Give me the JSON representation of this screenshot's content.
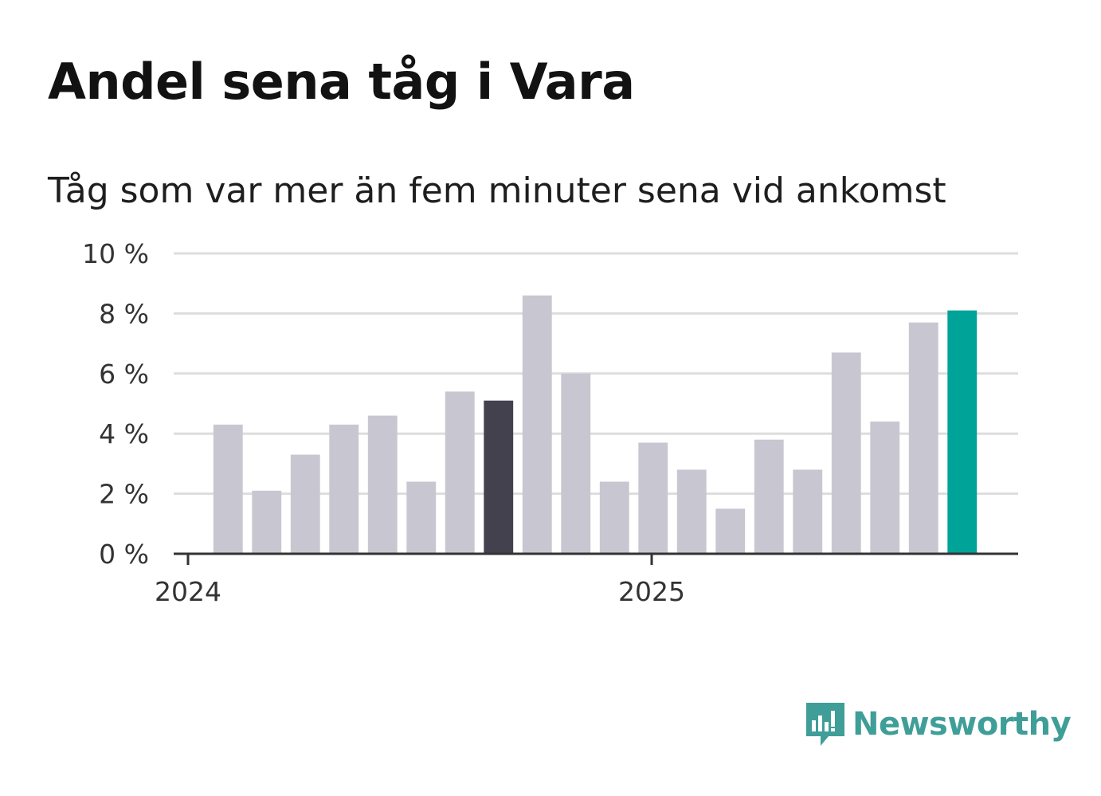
{
  "colors": {
    "bar_default": "#c8c7d1",
    "bar_highlight_prev": "#43414e",
    "bar_highlight_current": "#00a398",
    "grid": "#dddddd",
    "axis": "#333333",
    "brand": "#3f9e98"
  },
  "brand": {
    "name": "Newsworthy",
    "icon": "newsworthy-logo-icon"
  },
  "chart_data": {
    "type": "bar",
    "title": "Andel sena tåg i Vara",
    "subtitle": "Tåg som var mer än fem minuter sena vid ankomst",
    "xlabel": "",
    "ylabel": "",
    "categories": [
      "2024-01",
      "2024-02",
      "2024-03",
      "2024-04",
      "2024-05",
      "2024-06",
      "2024-07",
      "2024-08",
      "2024-09",
      "2024-10",
      "2024-11",
      "2024-12",
      "2025-01",
      "2025-02",
      "2025-03",
      "2025-04",
      "2025-05",
      "2025-06",
      "2025-07",
      "2025-08"
    ],
    "values": [
      4.3,
      2.1,
      3.3,
      4.3,
      4.6,
      2.4,
      5.4,
      5.1,
      8.6,
      6.0,
      2.4,
      3.7,
      2.8,
      1.5,
      3.8,
      2.8,
      6.7,
      4.4,
      7.7,
      8.1
    ],
    "highlight": {
      "2024-08": "bar_highlight_prev",
      "2025-08": "bar_highlight_current"
    },
    "ylim": [
      0,
      10
    ],
    "yticks": [
      0,
      2,
      4,
      6,
      8,
      10
    ],
    "ytick_labels": [
      "0 %",
      "2 %",
      "4 %",
      "6 %",
      "8 %",
      "10 %"
    ],
    "xticks": [
      {
        "label": "2024",
        "at": "2024-01",
        "offset": -0.5
      },
      {
        "label": "2025",
        "at": "2025-01",
        "offset": -0.5
      }
    ],
    "grid": true,
    "legend": "none"
  }
}
